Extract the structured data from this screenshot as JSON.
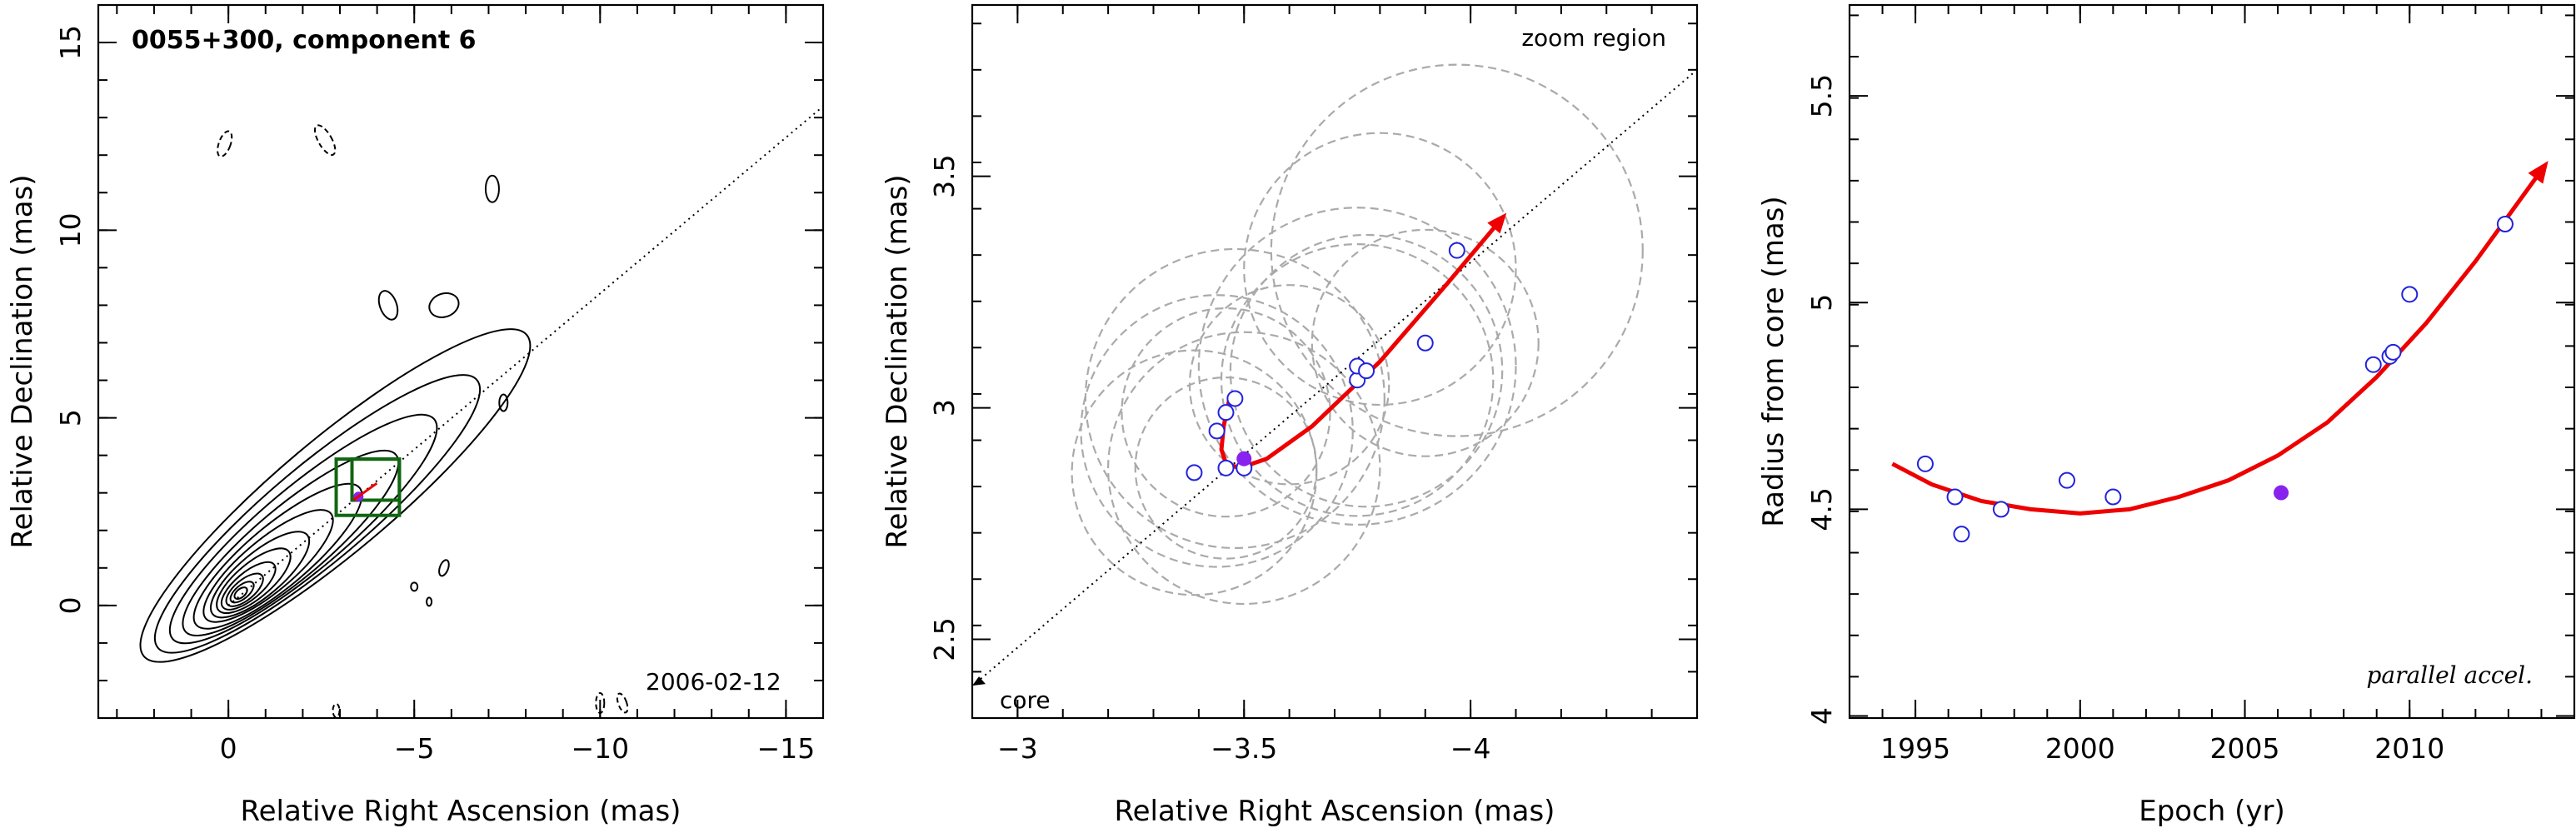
{
  "colors": {
    "fit": "#ee0000",
    "open_point": "#2222dd",
    "filled_point": "#8822ee",
    "ellipse": "#aaaaaa",
    "contour": "#000000",
    "box": "#116611"
  },
  "chart_data": [
    {
      "type": "contour",
      "title": "0055+300, component 6",
      "epoch_label": "2006-02-12",
      "xlabel": "Relative Right Ascension (mas)",
      "ylabel": "Relative Declination (mas)",
      "xlim": [
        3.5,
        -16
      ],
      "ylim": [
        -3,
        16
      ],
      "xticks": [
        0,
        -5,
        -10,
        -15
      ],
      "yticks": [
        0,
        5,
        10,
        15
      ],
      "xticklabels": [
        "0",
        "−5",
        "−10",
        "−15"
      ],
      "yticklabels": [
        "0",
        "5",
        "10",
        "15"
      ],
      "core": [
        -0.3,
        0.3
      ],
      "jet_pa_line": {
        "from": [
          0,
          0
        ],
        "to": [
          -16,
          13.3
        ]
      },
      "component_marker": [
        -3.5,
        2.9
      ],
      "zoom_box": {
        "x": [
          -2.9,
          -4.6
        ],
        "y": [
          2.4,
          3.9
        ]
      }
    },
    {
      "type": "scatter",
      "labels": {
        "zoom": "zoom region",
        "core": "core"
      },
      "xlabel": "Relative Right Ascension (mas)",
      "ylabel": "Relative Declination (mas)",
      "xlim": [
        -2.9,
        -4.5
      ],
      "ylim": [
        2.33,
        3.87
      ],
      "xticks": [
        -3,
        -3.5,
        -4
      ],
      "yticks": [
        2.5,
        3,
        3.5
      ],
      "xticklabels": [
        "−3",
        "−3.5",
        "−4"
      ],
      "yticklabels": [
        "2.5",
        "3",
        "3.5"
      ],
      "points_open": [
        [
          -3.39,
          2.86
        ],
        [
          -3.44,
          2.95
        ],
        [
          -3.46,
          2.99
        ],
        [
          -3.48,
          3.02
        ],
        [
          -3.46,
          2.87
        ],
        [
          -3.5,
          2.87
        ],
        [
          -3.75,
          3.06
        ],
        [
          -3.75,
          3.09
        ],
        [
          -3.77,
          3.08
        ],
        [
          -3.9,
          3.14
        ],
        [
          -3.97,
          3.34
        ]
      ],
      "points_filled": [
        [
          -3.5,
          2.89
        ]
      ],
      "error_circles": [
        [
          -3.39,
          2.86,
          0.27
        ],
        [
          -3.44,
          2.95,
          0.3
        ],
        [
          -3.46,
          2.99,
          0.23
        ],
        [
          -3.48,
          3.02,
          0.33
        ],
        [
          -3.46,
          2.87,
          0.2
        ],
        [
          -3.5,
          2.87,
          0.3
        ],
        [
          -3.6,
          3.05,
          0.22
        ],
        [
          -3.75,
          3.06,
          0.3
        ],
        [
          -3.75,
          3.09,
          0.35
        ],
        [
          -3.77,
          3.08,
          0.3
        ],
        [
          -3.9,
          3.14,
          0.25
        ],
        [
          -3.97,
          3.34,
          0.41
        ],
        [
          -3.8,
          3.3,
          0.3
        ]
      ],
      "fit_path": [
        [
          -3.47,
          3.03
        ],
        [
          -3.455,
          2.96
        ],
        [
          -3.45,
          2.91
        ],
        [
          -3.46,
          2.88
        ],
        [
          -3.49,
          2.87
        ],
        [
          -3.55,
          2.89
        ],
        [
          -3.65,
          2.96
        ],
        [
          -3.8,
          3.1
        ],
        [
          -3.95,
          3.27
        ],
        [
          -4.07,
          3.41
        ]
      ],
      "pa_line": {
        "from": [
          -2.9,
          2.4
        ],
        "to": [
          -4.5,
          3.73
        ]
      }
    },
    {
      "type": "scatter",
      "annotation": "parallel accel.",
      "xlabel": "Epoch (yr)",
      "ylabel": "Radius from core (mas)",
      "xlim": [
        1993,
        2015
      ],
      "ylim": [
        3.995,
        5.72
      ],
      "xticks": [
        1995,
        2000,
        2005,
        2010
      ],
      "yticks": [
        4,
        4.5,
        5,
        5.5
      ],
      "xticklabels": [
        "1995",
        "2000",
        "2005",
        "2010"
      ],
      "yticklabels": [
        "4",
        "4.5",
        "5",
        "5.5"
      ],
      "points_open": [
        [
          1995.3,
          4.61
        ],
        [
          1996.2,
          4.53
        ],
        [
          1996.4,
          4.44
        ],
        [
          1997.6,
          4.5
        ],
        [
          1999.6,
          4.57
        ],
        [
          2001,
          4.53
        ],
        [
          2008.9,
          4.85
        ],
        [
          2009.4,
          4.87
        ],
        [
          2009.5,
          4.88
        ],
        [
          2010,
          5.02
        ],
        [
          2012.9,
          5.19
        ]
      ],
      "points_filled": [
        [
          2006.1,
          4.54
        ]
      ],
      "fit_curve": [
        [
          1994.3,
          4.61
        ],
        [
          1995.5,
          4.56
        ],
        [
          1997,
          4.52
        ],
        [
          1998.5,
          4.5
        ],
        [
          2000,
          4.49
        ],
        [
          2001.5,
          4.5
        ],
        [
          2003,
          4.53
        ],
        [
          2004.5,
          4.57
        ],
        [
          2006,
          4.63
        ],
        [
          2007.5,
          4.71
        ],
        [
          2009,
          4.82
        ],
        [
          2010.5,
          4.95
        ],
        [
          2012,
          5.1
        ],
        [
          2013,
          5.21
        ],
        [
          2014,
          5.32
        ]
      ]
    }
  ]
}
